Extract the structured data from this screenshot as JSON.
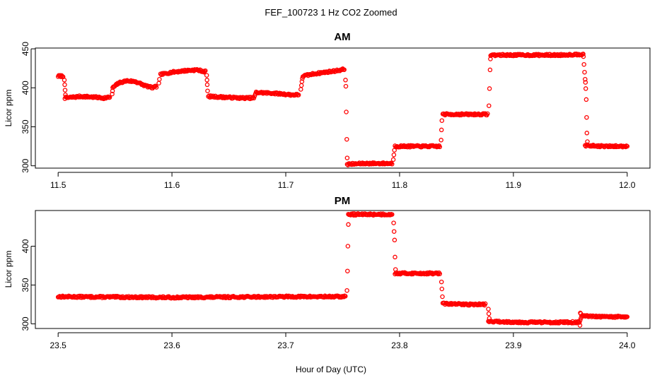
{
  "figure": {
    "title": "FEF_100723  1 Hz CO2 Zoomed",
    "xlabel": "Hour of Day (UTC)"
  },
  "chart_data": [
    {
      "type": "scatter",
      "title": "AM",
      "xlabel": "",
      "ylabel": "Licor ppm",
      "xlim": [
        11.48,
        12.02
      ],
      "ylim": [
        297,
        451
      ],
      "xticks": [
        11.5,
        11.6,
        11.7,
        11.8,
        11.9,
        12.0
      ],
      "xtick_labels": [
        "11.5",
        "11.6",
        "11.7",
        "11.8",
        "11.9",
        "12.0"
      ],
      "yticks": [
        300,
        350,
        400,
        450
      ],
      "ytick_labels": [
        "300",
        "350",
        "400",
        "450"
      ],
      "grid": false,
      "marker": "open-circle",
      "marker_color": "#ff0000",
      "segments": [
        [
          11.5,
          415
        ],
        [
          11.505,
          415
        ],
        [
          11.506,
          387
        ],
        [
          11.52,
          389
        ],
        [
          11.532,
          388
        ],
        [
          11.54,
          387
        ],
        [
          11.546,
          388
        ],
        [
          11.548,
          400
        ],
        [
          11.553,
          406
        ],
        [
          11.56,
          409
        ],
        [
          11.568,
          408
        ],
        [
          11.576,
          403
        ],
        [
          11.583,
          400
        ],
        [
          11.587,
          402
        ],
        [
          11.59,
          417
        ],
        [
          11.6,
          420
        ],
        [
          11.612,
          422
        ],
        [
          11.622,
          423
        ],
        [
          11.628,
          421
        ],
        [
          11.63,
          421
        ],
        [
          11.632,
          389
        ],
        [
          11.645,
          388
        ],
        [
          11.66,
          387
        ],
        [
          11.672,
          387
        ],
        [
          11.674,
          394
        ],
        [
          11.69,
          393
        ],
        [
          11.705,
          391
        ],
        [
          11.712,
          391
        ],
        [
          11.715,
          415
        ],
        [
          11.725,
          418
        ],
        [
          11.735,
          420
        ],
        [
          11.745,
          422
        ],
        [
          11.752,
          424
        ],
        [
          11.754,
          302
        ],
        [
          11.77,
          303
        ],
        [
          11.785,
          303
        ],
        [
          11.794,
          303
        ],
        [
          11.796,
          325
        ],
        [
          11.815,
          325
        ],
        [
          11.836,
          325
        ],
        [
          11.838,
          366
        ],
        [
          11.86,
          366
        ],
        [
          11.878,
          366
        ],
        [
          11.88,
          442
        ],
        [
          11.91,
          442
        ],
        [
          11.94,
          442
        ],
        [
          11.96,
          443
        ],
        [
          11.962,
          444
        ],
        [
          11.963,
          326
        ],
        [
          11.98,
          325
        ],
        [
          12.0,
          325
        ]
      ],
      "transitions": [
        [
          11.5055,
          410
        ],
        [
          11.5058,
          404
        ],
        [
          11.5061,
          397
        ],
        [
          11.5064,
          391
        ],
        [
          11.5475,
          392
        ],
        [
          11.5478,
          396
        ],
        [
          11.5885,
          406
        ],
        [
          11.589,
          411
        ],
        [
          11.6305,
          416
        ],
        [
          11.6308,
          410
        ],
        [
          11.631,
          404
        ],
        [
          11.6313,
          396
        ],
        [
          11.7132,
          398
        ],
        [
          11.7138,
          403
        ],
        [
          11.7142,
          408
        ],
        [
          11.7146,
          412
        ],
        [
          11.7525,
          410
        ],
        [
          11.7528,
          402
        ],
        [
          11.7532,
          369
        ],
        [
          11.7536,
          334
        ],
        [
          11.754,
          310
        ],
        [
          11.7945,
          308
        ],
        [
          11.795,
          314
        ],
        [
          11.7955,
          320
        ],
        [
          11.8365,
          333
        ],
        [
          11.8368,
          346
        ],
        [
          11.8372,
          358
        ],
        [
          11.8785,
          377
        ],
        [
          11.879,
          399
        ],
        [
          11.8795,
          423
        ],
        [
          11.8798,
          437
        ],
        [
          11.9615,
          440
        ],
        [
          11.962,
          430
        ],
        [
          11.9625,
          420
        ],
        [
          11.963,
          411
        ],
        [
          11.9633,
          407
        ],
        [
          11.9636,
          399
        ],
        [
          11.964,
          385
        ],
        [
          11.9643,
          362
        ],
        [
          11.9646,
          342
        ],
        [
          11.965,
          331
        ]
      ]
    },
    {
      "type": "scatter",
      "title": "PM",
      "xlabel": "Hour of Day (UTC)",
      "ylabel": "Licor ppm",
      "xlim": [
        23.48,
        24.02
      ],
      "ylim": [
        294,
        446
      ],
      "xticks": [
        23.5,
        23.6,
        23.7,
        23.8,
        23.9,
        24.0
      ],
      "xtick_labels": [
        "23.5",
        "23.6",
        "23.7",
        "23.8",
        "23.9",
        "24.0"
      ],
      "yticks": [
        300,
        350,
        400
      ],
      "ytick_labels": [
        "300",
        "350",
        "400"
      ],
      "grid": false,
      "marker": "open-circle",
      "marker_color": "#ff0000",
      "segments": [
        [
          23.5,
          335
        ],
        [
          23.6,
          334
        ],
        [
          23.7,
          335
        ],
        [
          23.753,
          335
        ],
        [
          23.755,
          441
        ],
        [
          23.775,
          441
        ],
        [
          23.794,
          441
        ],
        [
          23.796,
          365
        ],
        [
          23.815,
          365
        ],
        [
          23.836,
          365
        ],
        [
          23.838,
          326
        ],
        [
          23.86,
          325
        ],
        [
          23.876,
          325
        ],
        [
          23.878,
          303
        ],
        [
          23.91,
          302
        ],
        [
          23.958,
          302
        ],
        [
          23.96,
          310
        ],
        [
          23.98,
          309
        ],
        [
          24.0,
          309
        ]
      ],
      "transitions": [
        [
          23.7538,
          343
        ],
        [
          23.7542,
          368
        ],
        [
          23.7546,
          400
        ],
        [
          23.755,
          428
        ],
        [
          23.7948,
          430
        ],
        [
          23.7952,
          419
        ],
        [
          23.7956,
          408
        ],
        [
          23.796,
          386
        ],
        [
          23.7964,
          370
        ],
        [
          23.8368,
          354
        ],
        [
          23.8372,
          345
        ],
        [
          23.8376,
          335
        ],
        [
          23.878,
          319
        ],
        [
          23.8784,
          313
        ],
        [
          23.8788,
          307
        ],
        [
          23.9585,
          298
        ],
        [
          23.9588,
          314
        ],
        [
          23.9592,
          313
        ]
      ]
    }
  ]
}
